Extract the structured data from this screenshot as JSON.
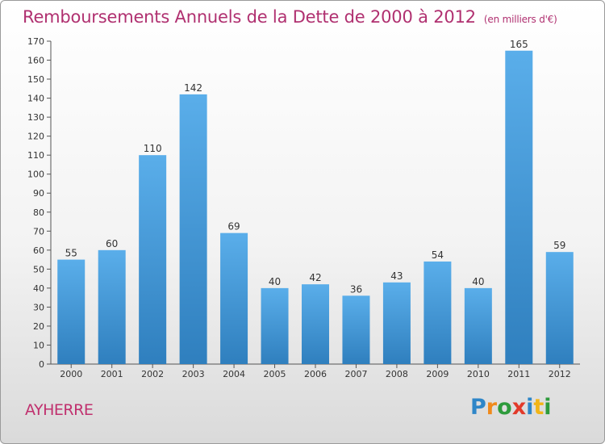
{
  "header": {
    "title": "Remboursements Annuels de la Dette de 2000 à 2012",
    "unit": "(en milliers d'€)"
  },
  "commune": "AYHERRE",
  "brand": {
    "letters": [
      "P",
      "r",
      "o",
      "x",
      "i",
      "t",
      "i"
    ],
    "colors": [
      "#2e86c8",
      "#f08a1c",
      "#2e9b3c",
      "#e23a2a",
      "#2e86c8",
      "#f2b517",
      "#2e9b3c"
    ]
  },
  "colors": {
    "bar_top": "#5aaeea",
    "bar_bottom": "#2f7fbe",
    "title": "#b03070"
  },
  "chart_data": {
    "type": "bar",
    "title": "Remboursements Annuels de la Dette de 2000 à 2012",
    "categories": [
      "2000",
      "2001",
      "2002",
      "2003",
      "2004",
      "2005",
      "2006",
      "2007",
      "2008",
      "2009",
      "2010",
      "2011",
      "2012"
    ],
    "values": [
      55,
      60,
      110,
      142,
      69,
      40,
      42,
      36,
      43,
      54,
      40,
      165,
      59
    ],
    "ylim": [
      0,
      170
    ],
    "ytick_step": 10,
    "grid": false,
    "legend": "none"
  }
}
